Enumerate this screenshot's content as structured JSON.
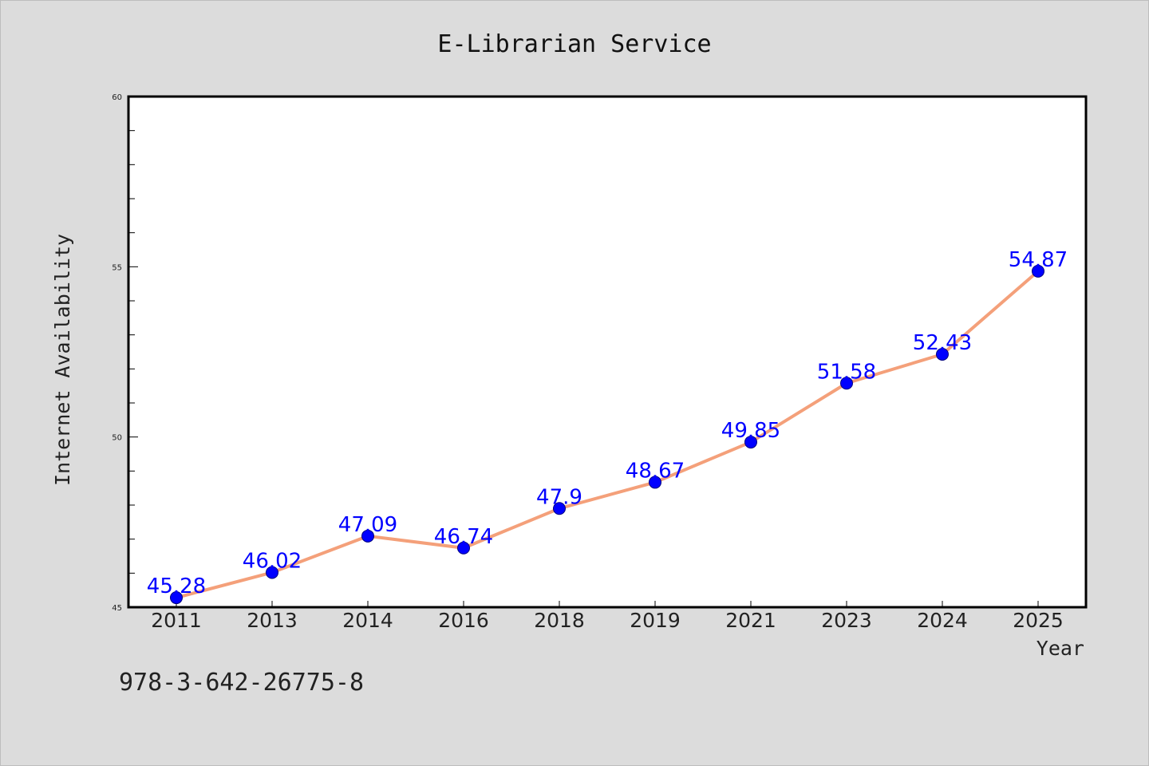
{
  "chart_data": {
    "type": "line",
    "title": "E-Librarian Service",
    "xlabel": "Year",
    "ylabel": "Internet Availability",
    "categories": [
      "2011",
      "2013",
      "2014",
      "2016",
      "2018",
      "2019",
      "2021",
      "2023",
      "2024",
      "2025"
    ],
    "series": [
      {
        "values": [
          45.28,
          46.02,
          47.09,
          46.74,
          47.9,
          48.67,
          49.85,
          51.58,
          52.43,
          54.87
        ],
        "data_labels": [
          "45.28",
          "46.02",
          "47.09",
          "46.74",
          "47.9",
          "48.67",
          "49.85",
          "51.58",
          "52.43",
          "54.87"
        ],
        "line_color": "#f4a07a",
        "marker_color": "#0000ff"
      }
    ],
    "ylim": [
      45,
      60
    ],
    "yticks": [
      "45",
      "50",
      "55",
      "60"
    ],
    "grid": false,
    "legend": "none"
  },
  "footer": {
    "isbn": "978-3-642-26775-8"
  }
}
